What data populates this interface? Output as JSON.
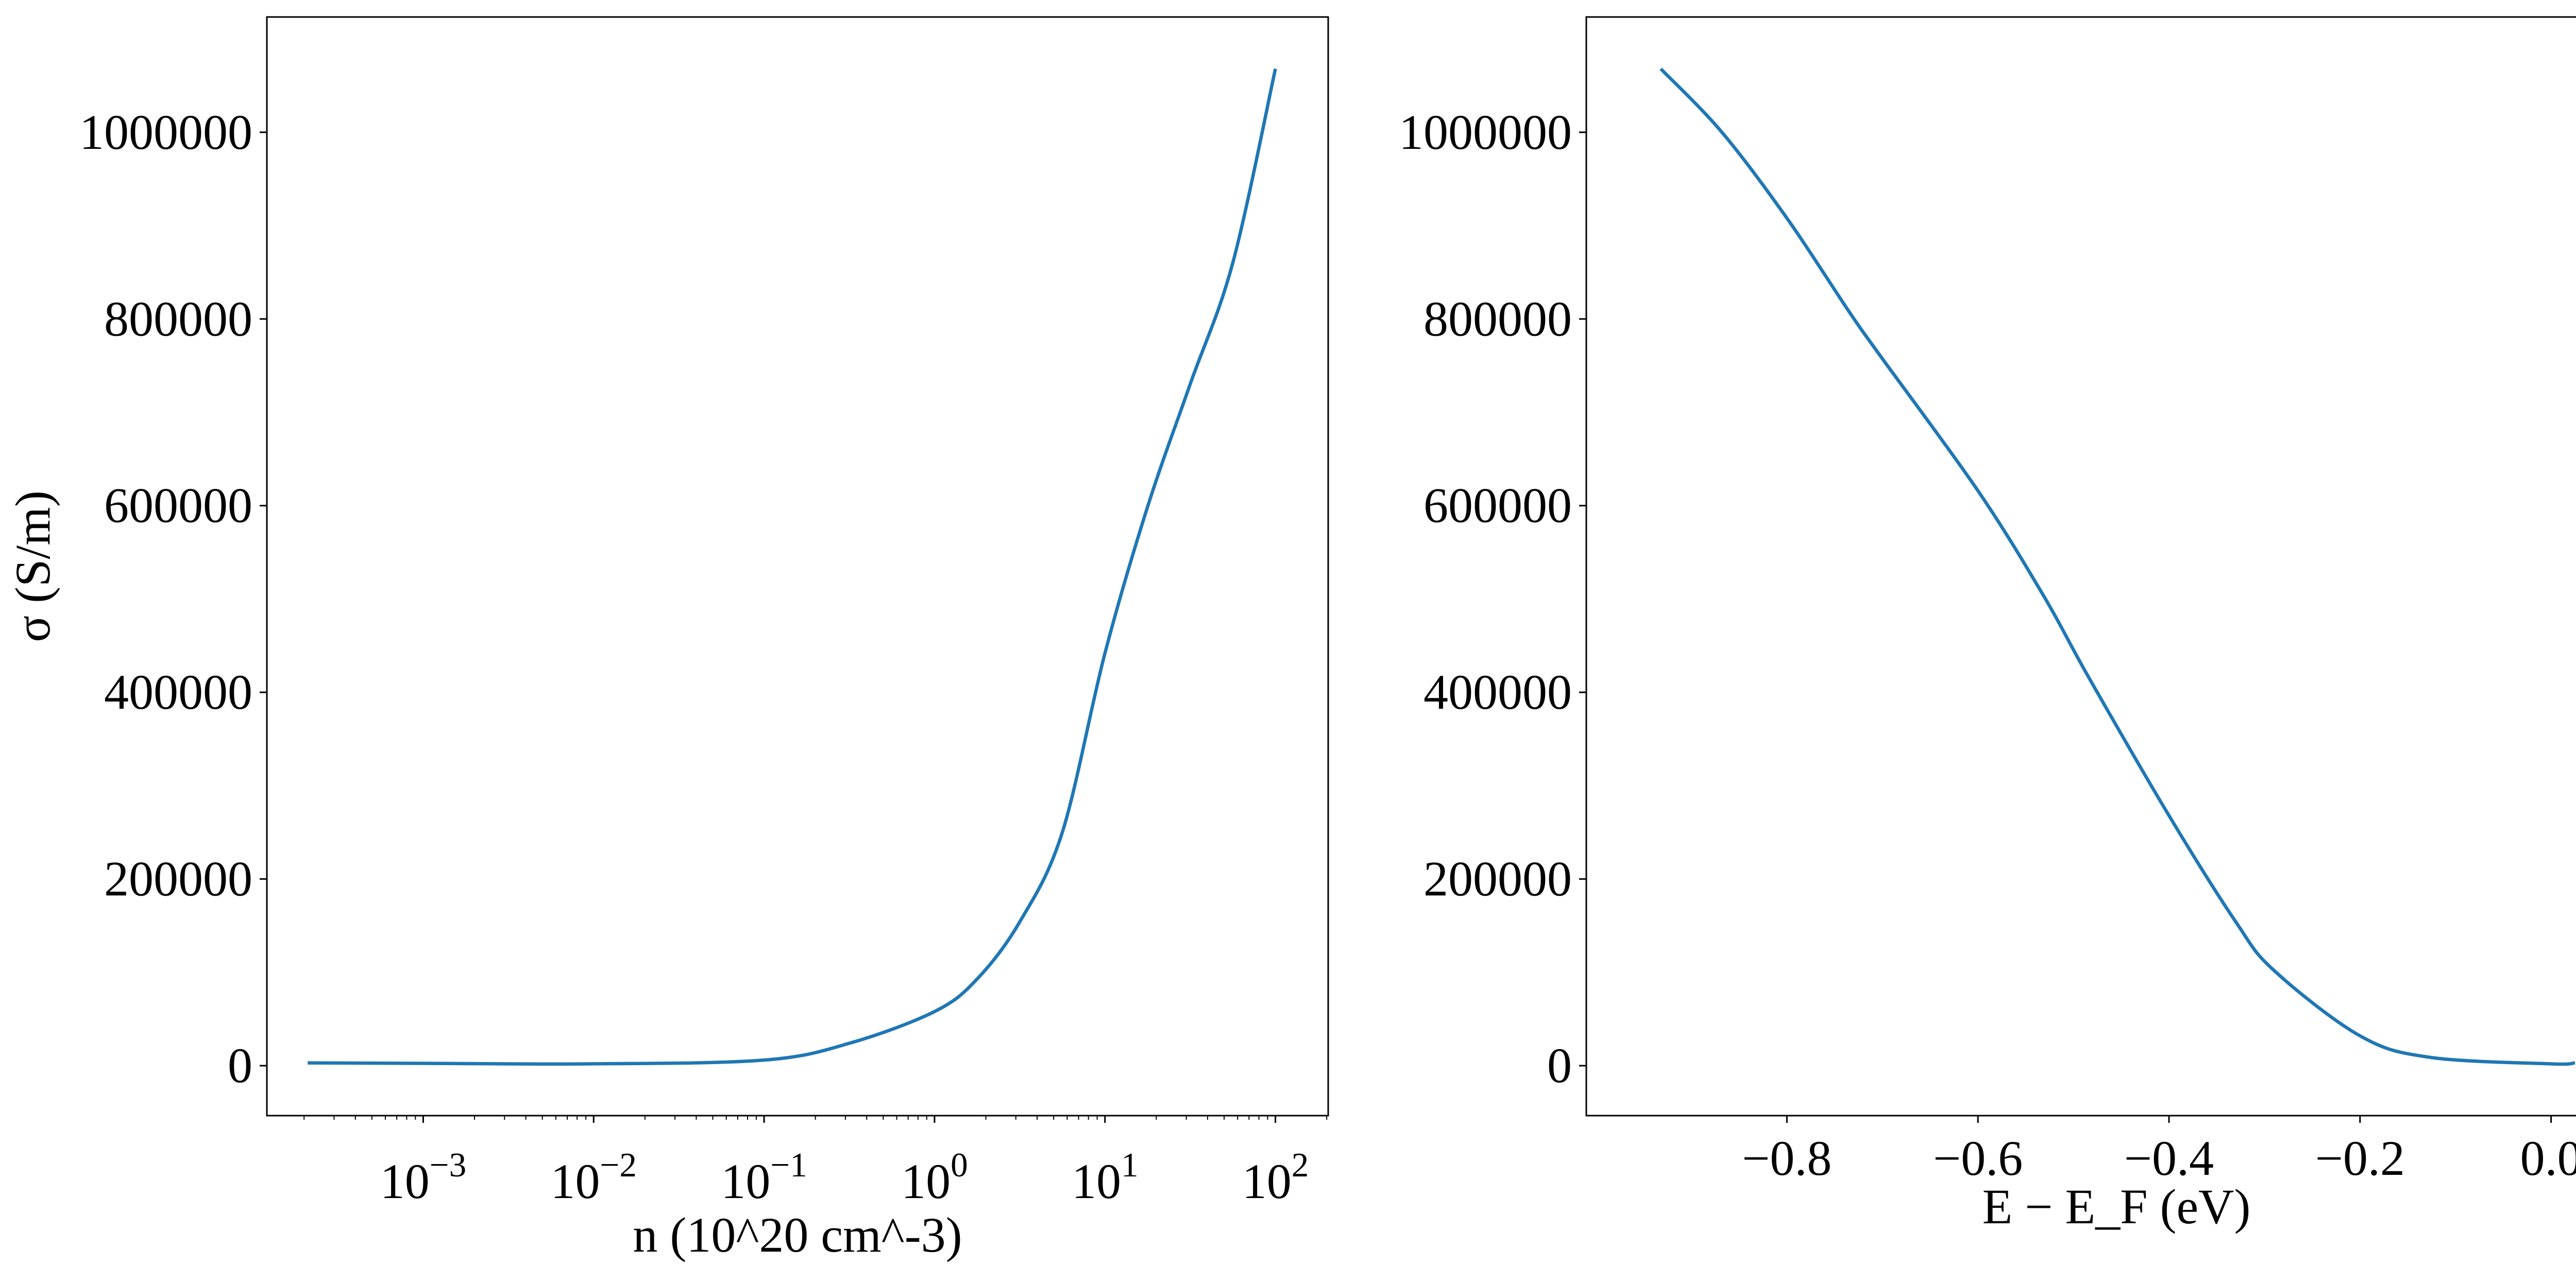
{
  "chart_data": [
    {
      "type": "line",
      "title": "",
      "xlabel": "n (10^20 cm^-3)",
      "xlabel_parts": {
        "pre": "n (10",
        "sup1": "20",
        "mid": " cm",
        "sup2": "−3",
        "post": ")"
      },
      "ylabel": "σ (S/m)",
      "xscale": "log",
      "xlim": [
        0.000121,
        204
      ],
      "ylim": [
        -53500,
        1123500
      ],
      "xticks": [
        0.001,
        0.01,
        0.1,
        1,
        10,
        100
      ],
      "xtick_labels": [
        {
          "base": "10",
          "exp": "−3"
        },
        {
          "base": "10",
          "exp": "−2"
        },
        {
          "base": "10",
          "exp": "−1"
        },
        {
          "base": "10",
          "exp": "0"
        },
        {
          "base": "10",
          "exp": "1"
        },
        {
          "base": "10",
          "exp": "2"
        }
      ],
      "yticks": [
        0,
        200000,
        400000,
        600000,
        800000,
        1000000
      ],
      "ytick_labels": [
        "0",
        "200000",
        "400000",
        "600000",
        "800000",
        "1000000"
      ],
      "grid": false,
      "line_color": "#1f77b4",
      "x": [
        0.00021,
        0.001,
        0.01,
        0.1,
        0.316,
        1,
        1.78,
        3.16,
        5.62,
        10,
        17.8,
        31.6,
        56.2,
        100
      ],
      "y": [
        3000,
        2500,
        2000,
        6000,
        24000,
        58000,
        93000,
        154000,
        250000,
        442000,
        599000,
        730000,
        860000,
        1068000
      ]
    },
    {
      "type": "line",
      "title": "",
      "xlabel": "E − E_F (eV)",
      "xlabel_parts": {
        "pre": "E − E",
        "sub": "F",
        "post": " (eV)"
      },
      "ylabel": "",
      "xscale": "linear",
      "xlim": [
        -1.01,
        0.1
      ],
      "ylim": [
        -53500,
        1123500
      ],
      "xticks": [
        -0.8,
        -0.6,
        -0.4,
        -0.2,
        0.0
      ],
      "xtick_labels": [
        "−0.8",
        "−0.6",
        "−0.4",
        "−0.2",
        "0.0"
      ],
      "yticks": [
        0,
        200000,
        400000,
        600000,
        800000,
        1000000
      ],
      "ytick_labels": [
        "0",
        "200000",
        "400000",
        "600000",
        "800000",
        "1000000"
      ],
      "grid": false,
      "line_color": "#1f77b4",
      "x": [
        -0.932,
        -0.868,
        -0.8,
        -0.735,
        -0.704,
        -0.6,
        -0.531,
        -0.484,
        -0.4,
        -0.33,
        -0.29,
        -0.2,
        -0.127,
        0.0,
        0.025
      ],
      "y": [
        1068000,
        1000000,
        908000,
        808000,
        763000,
        616000,
        503000,
        416000,
        268000,
        154000,
        102000,
        32000,
        9000,
        2000,
        3000
      ]
    }
  ]
}
